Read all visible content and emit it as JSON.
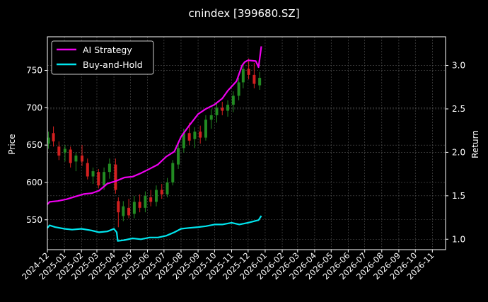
{
  "chart_data": {
    "type": "line",
    "title": "cnindex [399680.SZ]",
    "ylabel_left": "Price",
    "ylabel_right": "Return",
    "grid": true,
    "legend_position": "top-left",
    "x_range": [
      "2024-12-01",
      "2026-11-25"
    ],
    "x_ticks": [
      "2024-12",
      "2025-01",
      "2025-02",
      "2025-03",
      "2025-04",
      "2025-05",
      "2025-06",
      "2025-07",
      "2025-08",
      "2025-09",
      "2025-10",
      "2025-11",
      "2025-12",
      "2026-01",
      "2026-02",
      "2026-03",
      "2026-04",
      "2026-05",
      "2026-06",
      "2026-07",
      "2026-08",
      "2026-09",
      "2026-10",
      "2026-11"
    ],
    "ylim_left": [
      510,
      795
    ],
    "yticks_left": [
      550,
      600,
      650,
      700,
      750
    ],
    "ylim_right": [
      0.88,
      3.33
    ],
    "yticks_right": [
      1.0,
      1.5,
      2.0,
      2.5,
      3.0
    ],
    "colors": {
      "background": "#000000",
      "up_candle": "#228b22",
      "down_candle": "#d42020",
      "ai_strategy": "#ee00ee",
      "buy_and_hold": "#00e5ee",
      "grid": "#555555"
    },
    "series": [
      {
        "name": "AI Strategy",
        "axis": "right",
        "color": "#ee00ee",
        "points": [
          [
            "2024-12-01",
            1.4
          ],
          [
            "2024-12-05",
            1.43
          ],
          [
            "2024-12-20",
            1.44
          ],
          [
            "2025-01-05",
            1.46
          ],
          [
            "2025-01-20",
            1.49
          ],
          [
            "2025-02-05",
            1.52
          ],
          [
            "2025-02-20",
            1.53
          ],
          [
            "2025-03-05",
            1.56
          ],
          [
            "2025-03-20",
            1.64
          ],
          [
            "2025-04-05",
            1.67
          ],
          [
            "2025-04-20",
            1.71
          ],
          [
            "2025-05-05",
            1.72
          ],
          [
            "2025-05-20",
            1.76
          ],
          [
            "2025-06-05",
            1.81
          ],
          [
            "2025-06-20",
            1.86
          ],
          [
            "2025-07-05",
            1.95
          ],
          [
            "2025-07-20",
            2.01
          ],
          [
            "2025-08-01",
            2.18
          ],
          [
            "2025-08-15",
            2.3
          ],
          [
            "2025-09-01",
            2.44
          ],
          [
            "2025-09-15",
            2.5
          ],
          [
            "2025-10-01",
            2.55
          ],
          [
            "2025-10-15",
            2.62
          ],
          [
            "2025-10-25",
            2.71
          ],
          [
            "2025-11-10",
            2.82
          ],
          [
            "2025-11-20",
            3.0
          ],
          [
            "2025-11-25",
            3.04
          ],
          [
            "2025-12-01",
            3.06
          ],
          [
            "2025-12-15",
            3.05
          ],
          [
            "2025-12-20",
            2.98
          ],
          [
            "2025-12-25",
            3.22
          ]
        ]
      },
      {
        "name": "Buy-and-Hold",
        "axis": "right",
        "color": "#00e5ee",
        "points": [
          [
            "2024-12-01",
            1.13
          ],
          [
            "2024-12-05",
            1.16
          ],
          [
            "2024-12-15",
            1.14
          ],
          [
            "2025-01-01",
            1.12
          ],
          [
            "2025-01-15",
            1.11
          ],
          [
            "2025-02-01",
            1.12
          ],
          [
            "2025-02-20",
            1.1
          ],
          [
            "2025-03-05",
            1.08
          ],
          [
            "2025-03-20",
            1.09
          ],
          [
            "2025-04-01",
            1.12
          ],
          [
            "2025-04-06",
            1.08
          ],
          [
            "2025-04-08",
            0.98
          ],
          [
            "2025-04-20",
            0.99
          ],
          [
            "2025-05-05",
            1.01
          ],
          [
            "2025-05-20",
            1.0
          ],
          [
            "2025-06-05",
            1.02
          ],
          [
            "2025-06-20",
            1.02
          ],
          [
            "2025-07-05",
            1.04
          ],
          [
            "2025-07-20",
            1.08
          ],
          [
            "2025-08-01",
            1.12
          ],
          [
            "2025-08-15",
            1.13
          ],
          [
            "2025-09-01",
            1.14
          ],
          [
            "2025-09-15",
            1.15
          ],
          [
            "2025-10-01",
            1.17
          ],
          [
            "2025-10-15",
            1.17
          ],
          [
            "2025-11-01",
            1.19
          ],
          [
            "2025-11-15",
            1.17
          ],
          [
            "2025-12-01",
            1.19
          ],
          [
            "2025-12-20",
            1.22
          ],
          [
            "2025-12-25",
            1.27
          ]
        ]
      }
    ],
    "candles": [
      {
        "date": "2024-12-03",
        "open": 652,
        "high": 668,
        "low": 645,
        "close": 660
      },
      {
        "date": "2024-12-12",
        "open": 666,
        "high": 675,
        "low": 648,
        "close": 655
      },
      {
        "date": "2024-12-22",
        "open": 648,
        "high": 655,
        "low": 630,
        "close": 636
      },
      {
        "date": "2025-01-02",
        "open": 640,
        "high": 650,
        "low": 628,
        "close": 645
      },
      {
        "date": "2025-01-12",
        "open": 644,
        "high": 648,
        "low": 620,
        "close": 626
      },
      {
        "date": "2025-01-22",
        "open": 628,
        "high": 640,
        "low": 615,
        "close": 636
      },
      {
        "date": "2025-02-02",
        "open": 636,
        "high": 650,
        "low": 622,
        "close": 628
      },
      {
        "date": "2025-02-12",
        "open": 626,
        "high": 632,
        "low": 604,
        "close": 608
      },
      {
        "date": "2025-02-22",
        "open": 608,
        "high": 620,
        "low": 598,
        "close": 615
      },
      {
        "date": "2025-03-04",
        "open": 614,
        "high": 618,
        "low": 592,
        "close": 596
      },
      {
        "date": "2025-03-14",
        "open": 596,
        "high": 620,
        "low": 590,
        "close": 614
      },
      {
        "date": "2025-03-24",
        "open": 614,
        "high": 632,
        "low": 605,
        "close": 625
      },
      {
        "date": "2025-04-04",
        "open": 624,
        "high": 632,
        "low": 585,
        "close": 590
      },
      {
        "date": "2025-04-09",
        "open": 575,
        "high": 580,
        "low": 540,
        "close": 560
      },
      {
        "date": "2025-04-18",
        "open": 555,
        "high": 575,
        "low": 548,
        "close": 568
      },
      {
        "date": "2025-04-28",
        "open": 566,
        "high": 578,
        "low": 552,
        "close": 556
      },
      {
        "date": "2025-05-08",
        "open": 558,
        "high": 582,
        "low": 552,
        "close": 574
      },
      {
        "date": "2025-05-18",
        "open": 574,
        "high": 584,
        "low": 560,
        "close": 566
      },
      {
        "date": "2025-05-28",
        "open": 566,
        "high": 588,
        "low": 560,
        "close": 582
      },
      {
        "date": "2025-06-07",
        "open": 580,
        "high": 590,
        "low": 568,
        "close": 574
      },
      {
        "date": "2025-06-17",
        "open": 574,
        "high": 596,
        "low": 568,
        "close": 590
      },
      {
        "date": "2025-06-27",
        "open": 590,
        "high": 598,
        "low": 578,
        "close": 584
      },
      {
        "date": "2025-07-07",
        "open": 584,
        "high": 606,
        "low": 580,
        "close": 600
      },
      {
        "date": "2025-07-17",
        "open": 600,
        "high": 630,
        "low": 596,
        "close": 626
      },
      {
        "date": "2025-07-27",
        "open": 624,
        "high": 652,
        "low": 618,
        "close": 646
      },
      {
        "date": "2025-08-06",
        "open": 646,
        "high": 672,
        "low": 640,
        "close": 666
      },
      {
        "date": "2025-08-16",
        "open": 666,
        "high": 680,
        "low": 650,
        "close": 656
      },
      {
        "date": "2025-08-26",
        "open": 658,
        "high": 674,
        "low": 646,
        "close": 668
      },
      {
        "date": "2025-09-05",
        "open": 668,
        "high": 676,
        "low": 652,
        "close": 660
      },
      {
        "date": "2025-09-15",
        "open": 660,
        "high": 690,
        "low": 656,
        "close": 684
      },
      {
        "date": "2025-09-25",
        "open": 684,
        "high": 698,
        "low": 672,
        "close": 690
      },
      {
        "date": "2025-10-05",
        "open": 690,
        "high": 706,
        "low": 680,
        "close": 700
      },
      {
        "date": "2025-10-15",
        "open": 700,
        "high": 708,
        "low": 690,
        "close": 696
      },
      {
        "date": "2025-10-25",
        "open": 696,
        "high": 710,
        "low": 688,
        "close": 704
      },
      {
        "date": "2025-11-04",
        "open": 704,
        "high": 722,
        "low": 694,
        "close": 716
      },
      {
        "date": "2025-11-14",
        "open": 716,
        "high": 740,
        "low": 710,
        "close": 734
      },
      {
        "date": "2025-11-22",
        "open": 734,
        "high": 760,
        "low": 726,
        "close": 752
      },
      {
        "date": "2025-12-02",
        "open": 752,
        "high": 766,
        "low": 738,
        "close": 744
      },
      {
        "date": "2025-12-12",
        "open": 744,
        "high": 760,
        "low": 726,
        "close": 732
      },
      {
        "date": "2025-12-22",
        "open": 730,
        "high": 748,
        "low": 724,
        "close": 740
      }
    ]
  }
}
